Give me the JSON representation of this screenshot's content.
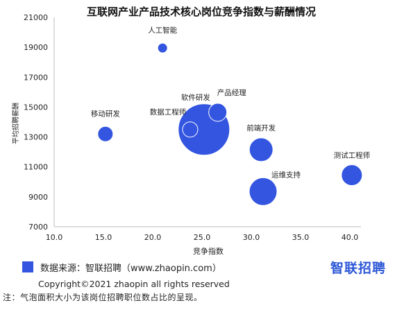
{
  "chart_data": {
    "type": "scatter",
    "title": "互联网产业产品技术核心岗位竞争指数与薪酬情况",
    "xlabel": "竞争指数",
    "ylabel": "平均招聘薪酬",
    "xlim": [
      10.0,
      40.0
    ],
    "ylim": [
      7000,
      21000
    ],
    "xticks": [
      "10.0",
      "15.0",
      "20.0",
      "25.0",
      "30.0",
      "35.0",
      "40.0"
    ],
    "yticks": [
      "7000",
      "9000",
      "11000",
      "13000",
      "15000",
      "17000",
      "19000",
      "21000"
    ],
    "grid": false,
    "point_color": "#3355e0",
    "points": [
      {
        "label": "人工智能",
        "x": 21.0,
        "y": 18950,
        "size": 7
      },
      {
        "label": "移动研发",
        "x": 15.2,
        "y": 13200,
        "size": 11
      },
      {
        "label": "数据工程师",
        "x": 23.8,
        "y": 13500,
        "size": 11
      },
      {
        "label": "软件研发",
        "x": 25.2,
        "y": 13500,
        "size": 37
      },
      {
        "label": "产品经理",
        "x": 26.6,
        "y": 14650,
        "size": 13
      },
      {
        "label": "前端开发",
        "x": 31.0,
        "y": 12150,
        "size": 17
      },
      {
        "label": "运维支持",
        "x": 31.2,
        "y": 9350,
        "size": 20
      },
      {
        "label": "测试工程师",
        "x": 40.2,
        "y": 10450,
        "size": 15
      }
    ]
  },
  "footer": {
    "source": "数据来源：智联招聘（www.zhaopin.com）",
    "brand": "智联招聘",
    "copyright": "Copyright©2021 zhaopin all rights reserved",
    "note": "注：气泡面积大小为该岗位招聘职位数占比的呈现。"
  }
}
